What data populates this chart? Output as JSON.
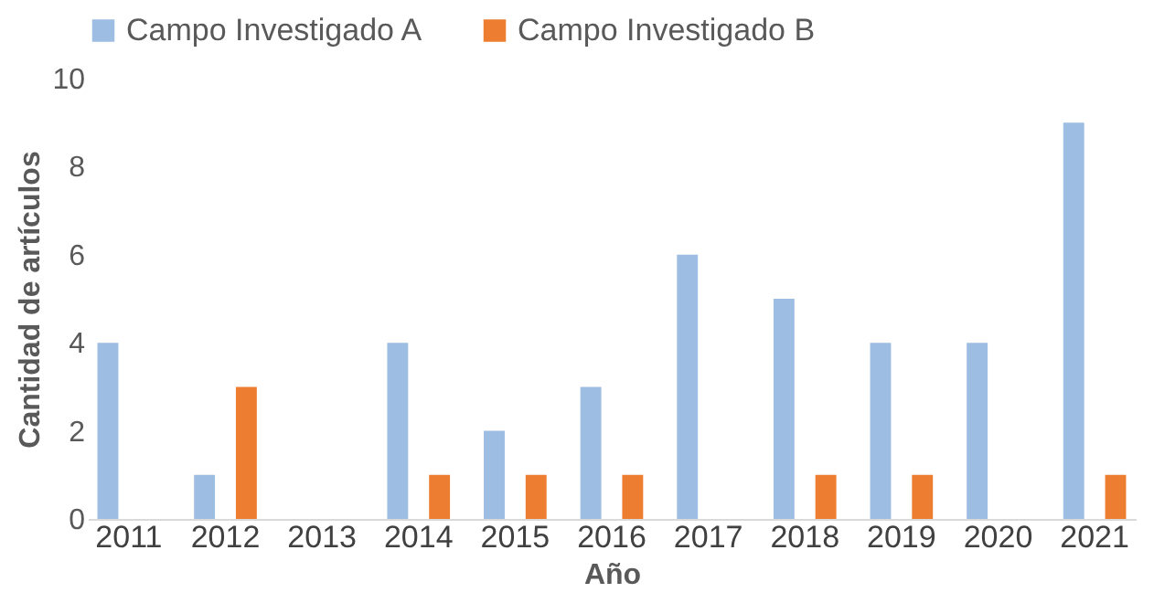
{
  "chart_data": {
    "type": "bar",
    "xlabel": "Año",
    "ylabel": "Cantidad de artículos",
    "categories": [
      "2011",
      "2012",
      "2013",
      "2014",
      "2015",
      "2016",
      "2017",
      "2018",
      "2019",
      "2020",
      "2021"
    ],
    "series": [
      {
        "name": "Campo Investigado A",
        "color": "#9dbde2",
        "values": [
          4,
          1,
          0,
          4,
          2,
          3,
          6,
          5,
          4,
          4,
          9
        ]
      },
      {
        "name": "Campo Investigado B",
        "color": "#ed7d31",
        "values": [
          0,
          3,
          0,
          1,
          1,
          1,
          0,
          1,
          1,
          0,
          1
        ]
      }
    ],
    "ylim": [
      0,
      10
    ],
    "yticks": [
      0,
      2,
      4,
      6,
      8,
      10
    ],
    "grid": false,
    "legend": "top"
  }
}
